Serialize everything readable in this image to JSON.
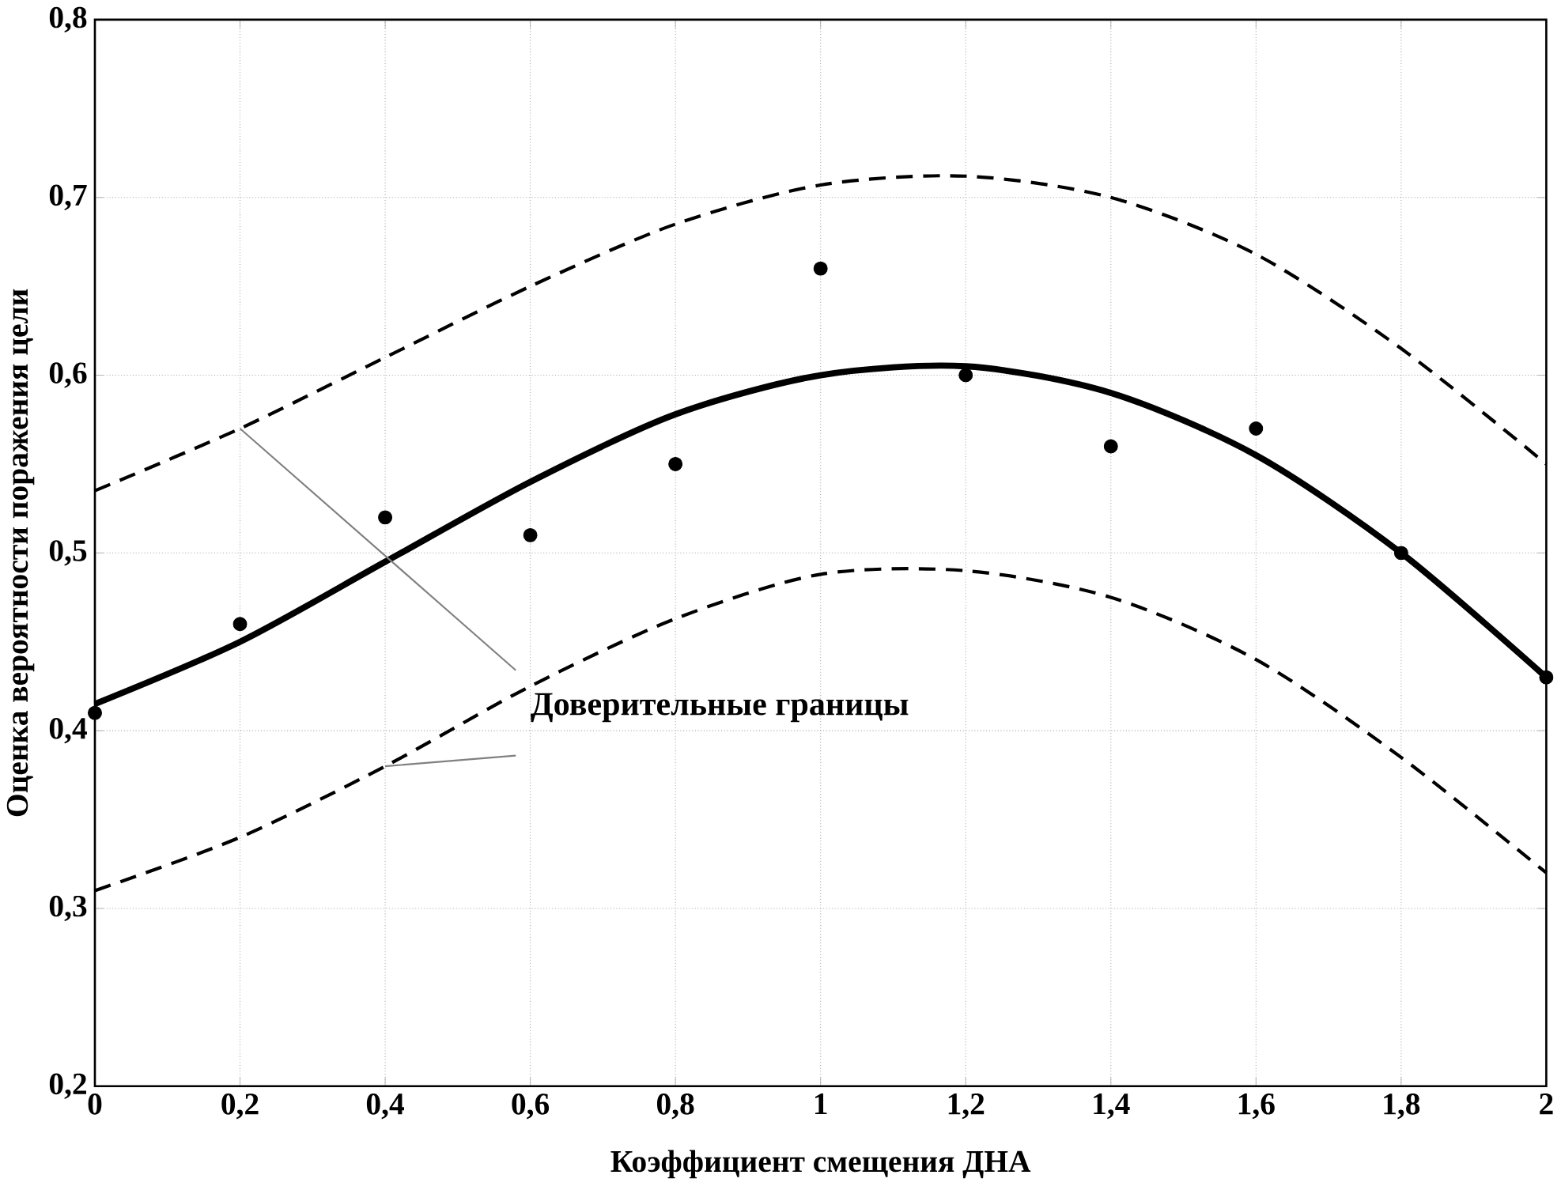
{
  "chart_data": {
    "type": "line",
    "xlabel": "Коэффициент   смещения   ДНА",
    "ylabel": "Оценка вероятности поражения цели",
    "x": [
      0,
      0.2,
      0.4,
      0.6,
      0.8,
      1,
      1.2,
      1.4,
      1.6,
      1.8,
      2
    ],
    "series": [
      {
        "color": "#000000",
        "line_style": "solid",
        "values": [
          0.415,
          0.45,
          0.495,
          0.54,
          0.578,
          0.6,
          0.605,
          0.59,
          0.555,
          0.5,
          0.43
        ]
      },
      {
        "color": "#000000",
        "line_style": "dashed",
        "values": [
          0.535,
          0.57,
          0.61,
          0.65,
          0.685,
          0.707,
          0.712,
          0.7,
          0.668,
          0.615,
          0.55
        ]
      },
      {
        "color": "#000000",
        "line_style": "dashed",
        "values": [
          0.31,
          0.34,
          0.38,
          0.425,
          0.463,
          0.488,
          0.49,
          0.475,
          0.44,
          0.385,
          0.32
        ]
      },
      {
        "type": "scatter",
        "color": "#000000",
        "marker": "circle",
        "values": [
          0.41,
          0.46,
          0.52,
          0.51,
          0.55,
          0.66,
          0.6,
          0.56,
          0.57,
          0.5,
          0.43
        ]
      }
    ],
    "xlim": [
      0,
      2
    ],
    "ylim": [
      0.2,
      0.8
    ],
    "xticks": [
      0,
      {
        "value": 0.2,
        "label": "0,2"
      },
      {
        "value": 0.4,
        "label": "0,4"
      },
      {
        "value": 0.6,
        "label": "0,6"
      },
      {
        "value": 0.8,
        "label": "0,8"
      },
      1,
      {
        "value": 1.2,
        "label": "1,2"
      },
      {
        "value": 1.4,
        "label": "1,4"
      },
      {
        "value": 1.6,
        "label": "1,6"
      },
      {
        "value": 1.8,
        "label": "1,8"
      },
      2
    ],
    "yticks": [
      {
        "value": 0.2,
        "label": "0,2"
      },
      {
        "value": 0.3,
        "label": "0,3"
      },
      {
        "value": 0.4,
        "label": "0,4"
      },
      {
        "value": 0.5,
        "label": "0,5"
      },
      {
        "value": 0.6,
        "label": "0,6"
      },
      {
        "value": 0.7,
        "label": "0,7"
      },
      {
        "value": 0.8,
        "label": "0,8"
      }
    ],
    "grid": true,
    "annotations": [
      {
        "text": "Доверительные границы",
        "x": 0.2,
        "y": 0.57
      }
    ]
  }
}
